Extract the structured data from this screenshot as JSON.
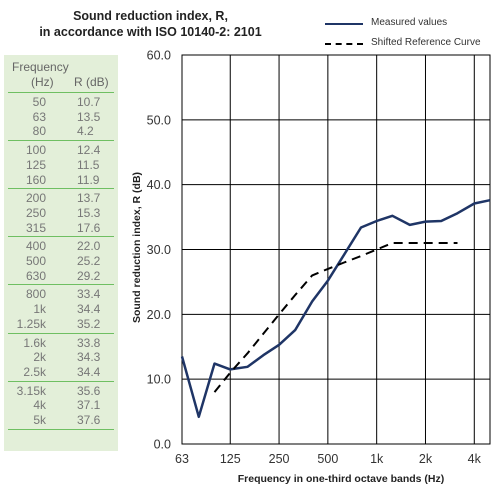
{
  "title_line1": "Sound reduction index, R,",
  "title_line2": "in accordance with ISO 10140-2: 2101",
  "table": {
    "header": "Frequency",
    "col_freq": "(Hz)",
    "col_r": "R (dB)",
    "groups": [
      [
        {
          "f": "50",
          "r": "10.7"
        },
        {
          "f": "63",
          "r": "13.5"
        },
        {
          "f": "80",
          "r": "4.2"
        }
      ],
      [
        {
          "f": "100",
          "r": "12.4"
        },
        {
          "f": "125",
          "r": "11.5"
        },
        {
          "f": "160",
          "r": "11.9"
        }
      ],
      [
        {
          "f": "200",
          "r": "13.7"
        },
        {
          "f": "250",
          "r": "15.3"
        },
        {
          "f": "315",
          "r": "17.6"
        }
      ],
      [
        {
          "f": "400",
          "r": "22.0"
        },
        {
          "f": "500",
          "r": "25.2"
        },
        {
          "f": "630",
          "r": "29.2"
        }
      ],
      [
        {
          "f": "800",
          "r": "33.4"
        },
        {
          "f": "1k",
          "r": "34.4"
        },
        {
          "f": "1.25k",
          "r": "35.2"
        }
      ],
      [
        {
          "f": "1.6k",
          "r": "33.8"
        },
        {
          "f": "2k",
          "r": "34.3"
        },
        {
          "f": "2.5k",
          "r": "34.4"
        }
      ],
      [
        {
          "f": "3.15k",
          "r": "35.6"
        },
        {
          "f": "4k",
          "r": "37.1"
        },
        {
          "f": "5k",
          "r": "37.6"
        }
      ]
    ]
  },
  "legend": {
    "measured": "Measured values",
    "reference": "Shifted Reference Curve"
  },
  "colors": {
    "measured": "#1f3566",
    "reference": "#000000",
    "table_bg": "#e3efd9",
    "table_sep": "#6fbf62"
  },
  "chart_data": {
    "type": "line",
    "xlabel": "Frequency in one-third octave bands (Hz)",
    "ylabel": "Sound reduction index, R (dB)",
    "x_scale": "log",
    "x_ticks": [
      {
        "v": 63,
        "label": "63"
      },
      {
        "v": 125,
        "label": "125"
      },
      {
        "v": 250,
        "label": "250"
      },
      {
        "v": 500,
        "label": "500"
      },
      {
        "v": 1000,
        "label": "1k"
      },
      {
        "v": 2000,
        "label": "2k"
      },
      {
        "v": 4000,
        "label": "4k"
      }
    ],
    "x_range": [
      63,
      5000
    ],
    "ylim": [
      0,
      60
    ],
    "y_ticks": [
      "0.0",
      "10.0",
      "20.0",
      "30.0",
      "40.0",
      "50.0",
      "60.0"
    ],
    "grid": true,
    "legend_position": "top-right",
    "series": [
      {
        "name": "Measured values",
        "style": "solid",
        "x": [
          63,
          80,
          100,
          125,
          160,
          200,
          250,
          315,
          400,
          500,
          630,
          800,
          1000,
          1250,
          1600,
          2000,
          2500,
          3150,
          4000,
          5000
        ],
        "y": [
          13.5,
          4.2,
          12.4,
          11.5,
          11.9,
          13.7,
          15.3,
          17.6,
          22.0,
          25.2,
          29.2,
          33.4,
          34.4,
          35.2,
          33.8,
          34.3,
          34.4,
          35.6,
          37.1,
          37.6
        ]
      },
      {
        "name": "Shifted Reference Curve",
        "style": "dashed",
        "x": [
          100,
          125,
          160,
          200,
          250,
          315,
          400,
          500,
          630,
          800,
          1000,
          1250,
          1600,
          2000,
          2500,
          3150
        ],
        "y": [
          8.0,
          11.0,
          14.0,
          17.0,
          20.0,
          23.0,
          26.0,
          27.0,
          28.0,
          29.0,
          30.0,
          31.0,
          31.0,
          31.0,
          31.0,
          31.0
        ]
      }
    ]
  }
}
